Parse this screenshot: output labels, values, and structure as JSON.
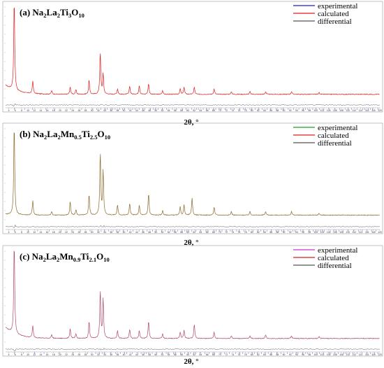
{
  "chart_data": [
    {
      "type": "line",
      "panel_label": "(a)",
      "title_parts": [
        {
          "t": "(a) Na",
          "s": "n"
        },
        {
          "t": "2",
          "s": "sub"
        },
        {
          "t": "La",
          "s": "n"
        },
        {
          "t": "2",
          "s": "sub"
        },
        {
          "t": "Ti",
          "s": "n"
        },
        {
          "t": "3",
          "s": "sub"
        },
        {
          "t": "O",
          "s": "n"
        },
        {
          "t": "10",
          "s": "sub"
        }
      ],
      "xlabel": "2θ, °",
      "xlim": [
        3,
        120
      ],
      "ylim": [
        -10,
        100
      ],
      "background": {
        "start": 14,
        "end": 4
      },
      "series": [
        {
          "name": "experimental",
          "color": "#1e1ec8"
        },
        {
          "name": "calculated",
          "color": "#e01e1e"
        },
        {
          "name": "differential",
          "color": "#555555"
        }
      ],
      "plot_colors": {
        "main": "#e01e1e",
        "diff": "#555555",
        "tick": "#3333cc"
      },
      "peaks": [
        [
          5.7,
          100
        ],
        [
          11.5,
          14
        ],
        [
          17.4,
          4
        ],
        [
          23.2,
          8
        ],
        [
          25.0,
          5
        ],
        [
          29.1,
          16
        ],
        [
          32.6,
          46
        ],
        [
          33.5,
          22
        ],
        [
          38.0,
          6
        ],
        [
          41.8,
          9
        ],
        [
          44.8,
          10
        ],
        [
          47.7,
          12
        ],
        [
          52.1,
          4
        ],
        [
          57.6,
          6
        ],
        [
          58.8,
          8
        ],
        [
          62.0,
          8
        ],
        [
          68.2,
          6
        ],
        [
          73.6,
          3
        ],
        [
          79.4,
          3
        ],
        [
          84.3,
          3
        ],
        [
          92.4,
          3
        ],
        [
          101.0,
          2
        ]
      ]
    },
    {
      "type": "line",
      "panel_label": "(b)",
      "title_parts": [
        {
          "t": "(b) Na",
          "s": "n"
        },
        {
          "t": "2",
          "s": "sub"
        },
        {
          "t": "La",
          "s": "n"
        },
        {
          "t": "2",
          "s": "sub"
        },
        {
          "t": "Mn",
          "s": "n"
        },
        {
          "t": "0.5",
          "s": "sub"
        },
        {
          "t": "Ti",
          "s": "n"
        },
        {
          "t": "2.5",
          "s": "sub"
        },
        {
          "t": "O",
          "s": "n"
        },
        {
          "t": "10",
          "s": "sub"
        }
      ],
      "xlabel": "2θ, °",
      "xlim": [
        3,
        120
      ],
      "ylim": [
        -10,
        100
      ],
      "background": {
        "start": 6,
        "end": 5
      },
      "series": [
        {
          "name": "experimental",
          "color": "#1ea01e"
        },
        {
          "name": "calculated",
          "color": "#e01e1e"
        },
        {
          "name": "differential",
          "color": "#555555"
        }
      ],
      "plot_colors": {
        "main": "#8a6a2a",
        "diff": "#555555",
        "tick": "#3333cc"
      },
      "peaks": [
        [
          5.7,
          100
        ],
        [
          11.5,
          16
        ],
        [
          17.4,
          4
        ],
        [
          23.2,
          15
        ],
        [
          25.0,
          6
        ],
        [
          29.1,
          23
        ],
        [
          32.6,
          68
        ],
        [
          33.5,
          48
        ],
        [
          38.0,
          11
        ],
        [
          41.8,
          13
        ],
        [
          44.8,
          11
        ],
        [
          47.7,
          24
        ],
        [
          52.1,
          5
        ],
        [
          57.6,
          9
        ],
        [
          58.8,
          11
        ],
        [
          61.3,
          19
        ],
        [
          68.2,
          9
        ],
        [
          73.6,
          4
        ],
        [
          79.4,
          4
        ],
        [
          84.3,
          4
        ],
        [
          92.4,
          4
        ],
        [
          101.0,
          2
        ]
      ]
    },
    {
      "type": "line",
      "panel_label": "(c)",
      "title_parts": [
        {
          "t": "(c) Na",
          "s": "n"
        },
        {
          "t": "2",
          "s": "sub"
        },
        {
          "t": "La",
          "s": "n"
        },
        {
          "t": "2",
          "s": "sub"
        },
        {
          "t": "Mn",
          "s": "n"
        },
        {
          "t": "0.9",
          "s": "sub"
        },
        {
          "t": "Ti",
          "s": "n"
        },
        {
          "t": "2.1",
          "s": "sub"
        },
        {
          "t": "O",
          "s": "n"
        },
        {
          "t": "10",
          "s": "sub"
        }
      ],
      "xlabel": "2θ, °",
      "xlim": [
        3,
        120
      ],
      "ylim": [
        -10,
        100
      ],
      "background": {
        "start": 16,
        "end": 4
      },
      "series": [
        {
          "name": "experimental",
          "color": "#cc33cc"
        },
        {
          "name": "calculated",
          "color": "#e01e1e"
        },
        {
          "name": "differential",
          "color": "#555555"
        }
      ],
      "plot_colors": {
        "main": "#b04a6a",
        "diff": "#555555",
        "tick": "#3333cc"
      },
      "peaks": [
        [
          5.7,
          100
        ],
        [
          11.5,
          13
        ],
        [
          17.4,
          4
        ],
        [
          23.2,
          11
        ],
        [
          25.0,
          5
        ],
        [
          29.1,
          19
        ],
        [
          32.6,
          52
        ],
        [
          33.5,
          43
        ],
        [
          38.0,
          9
        ],
        [
          41.8,
          10
        ],
        [
          44.8,
          9
        ],
        [
          47.7,
          19
        ],
        [
          52.1,
          5
        ],
        [
          57.6,
          7
        ],
        [
          58.8,
          9
        ],
        [
          62.0,
          16
        ],
        [
          68.2,
          7
        ],
        [
          73.6,
          3
        ],
        [
          79.4,
          3
        ],
        [
          84.3,
          4
        ],
        [
          92.4,
          3
        ],
        [
          101.0,
          2
        ]
      ]
    }
  ]
}
